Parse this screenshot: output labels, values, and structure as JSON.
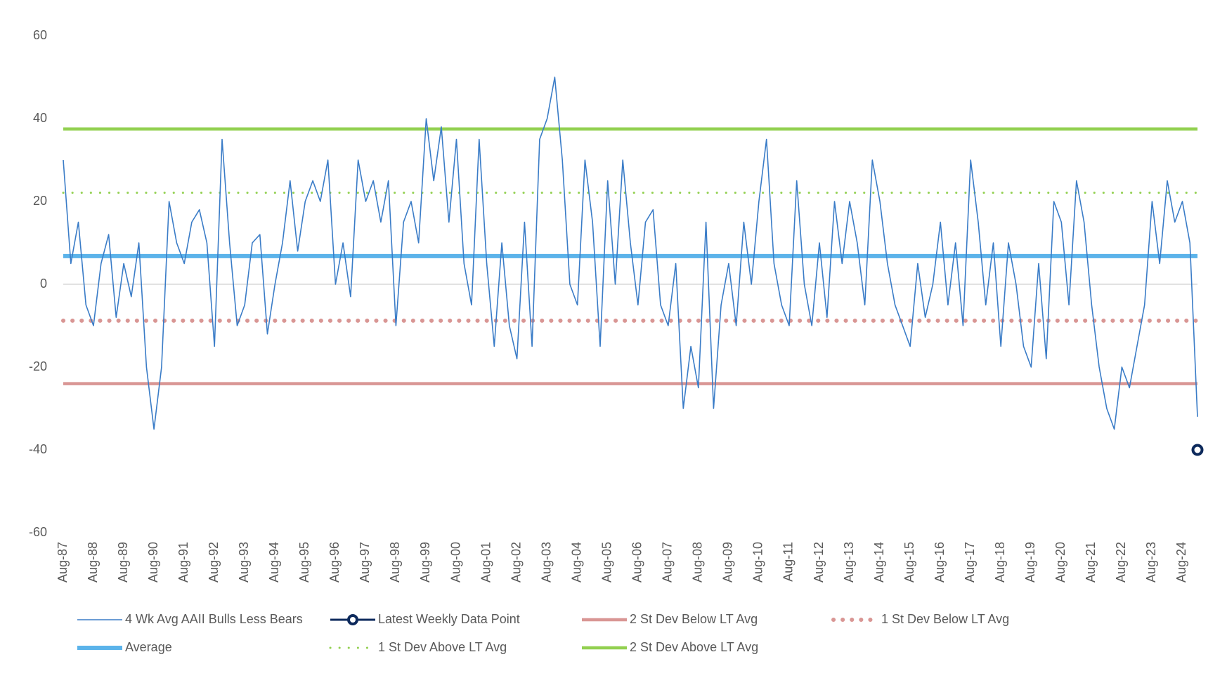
{
  "chart_data": {
    "type": "line",
    "x": [
      "Aug-87",
      "Nov-87",
      "Feb-88",
      "May-88",
      "Aug-88",
      "Nov-88",
      "Feb-89",
      "May-89",
      "Aug-89",
      "Nov-89",
      "Feb-90",
      "May-90",
      "Aug-90",
      "Nov-90",
      "Feb-91",
      "May-91",
      "Aug-91",
      "Nov-91",
      "Feb-92",
      "May-92",
      "Aug-92",
      "Nov-92",
      "Feb-93",
      "May-93",
      "Aug-93",
      "Nov-93",
      "Feb-94",
      "May-94",
      "Aug-94",
      "Nov-94",
      "Feb-95",
      "May-95",
      "Aug-95",
      "Nov-95",
      "Feb-96",
      "May-96",
      "Aug-96",
      "Nov-96",
      "Feb-97",
      "May-97",
      "Aug-97",
      "Nov-97",
      "Feb-98",
      "May-98",
      "Aug-98",
      "Nov-98",
      "Feb-99",
      "May-99",
      "Aug-99",
      "Nov-99",
      "Feb-00",
      "May-00",
      "Aug-00",
      "Nov-00",
      "Feb-01",
      "May-01",
      "Aug-01",
      "Nov-01",
      "Feb-02",
      "May-02",
      "Aug-02",
      "Nov-02",
      "Feb-03",
      "May-03",
      "Aug-03",
      "Nov-03",
      "Feb-04",
      "May-04",
      "Aug-04",
      "Nov-04",
      "Feb-05",
      "May-05",
      "Aug-05",
      "Nov-05",
      "Feb-06",
      "May-06",
      "Aug-06",
      "Nov-06",
      "Feb-07",
      "May-07",
      "Aug-07",
      "Nov-07",
      "Feb-08",
      "May-08",
      "Aug-08",
      "Nov-08",
      "Feb-09",
      "May-09",
      "Aug-09",
      "Nov-09",
      "Feb-10",
      "May-10",
      "Aug-10",
      "Nov-10",
      "Feb-11",
      "May-11",
      "Aug-11",
      "Nov-11",
      "Feb-12",
      "May-12",
      "Aug-12",
      "Nov-12",
      "Feb-13",
      "May-13",
      "Aug-13",
      "Nov-13",
      "Feb-14",
      "May-14",
      "Aug-14",
      "Nov-14",
      "Feb-15",
      "May-15",
      "Aug-15",
      "Nov-15",
      "Feb-16",
      "May-16",
      "Aug-16",
      "Nov-16",
      "Feb-17",
      "May-17",
      "Aug-17",
      "Nov-17",
      "Feb-18",
      "May-18",
      "Aug-18",
      "Nov-18",
      "Feb-19",
      "May-19",
      "Aug-19",
      "Nov-19",
      "Feb-20",
      "May-20",
      "Aug-20",
      "Nov-20",
      "Feb-21",
      "May-21",
      "Aug-21",
      "Nov-21",
      "Feb-22",
      "May-22",
      "Aug-22",
      "Nov-22",
      "Feb-23",
      "May-23",
      "Aug-23",
      "Nov-23",
      "Feb-24",
      "May-24",
      "Aug-24",
      "Nov-24",
      "Feb-25"
    ],
    "xticks": [
      "Aug-87",
      "Aug-88",
      "Aug-89",
      "Aug-90",
      "Aug-91",
      "Aug-92",
      "Aug-93",
      "Aug-94",
      "Aug-95",
      "Aug-96",
      "Aug-97",
      "Aug-98",
      "Aug-99",
      "Aug-00",
      "Aug-01",
      "Aug-02",
      "Aug-03",
      "Aug-04",
      "Aug-05",
      "Aug-06",
      "Aug-07",
      "Aug-08",
      "Aug-09",
      "Aug-10",
      "Aug-11",
      "Aug-12",
      "Aug-13",
      "Aug-14",
      "Aug-15",
      "Aug-16",
      "Aug-17",
      "Aug-18",
      "Aug-19",
      "Aug-20",
      "Aug-21",
      "Aug-22",
      "Aug-23",
      "Aug-24"
    ],
    "series": [
      {
        "name": "4 Wk Avg AAII Bulls Less Bears",
        "color": "#3a7cc7",
        "values": [
          30,
          5,
          15,
          -5,
          -10,
          5,
          12,
          -8,
          5,
          -3,
          10,
          -20,
          -35,
          -20,
          20,
          10,
          5,
          15,
          18,
          10,
          -15,
          35,
          10,
          -10,
          -5,
          10,
          12,
          -12,
          0,
          10,
          25,
          8,
          20,
          25,
          20,
          30,
          0,
          10,
          -3,
          30,
          20,
          25,
          15,
          25,
          -10,
          15,
          20,
          10,
          40,
          25,
          38,
          15,
          35,
          5,
          -5,
          35,
          5,
          -15,
          10,
          -10,
          -18,
          15,
          -15,
          35,
          40,
          50,
          30,
          0,
          -5,
          30,
          15,
          -15,
          25,
          0,
          30,
          10,
          -5,
          15,
          18,
          -5,
          -10,
          5,
          -30,
          -15,
          -25,
          15,
          -30,
          -5,
          5,
          -10,
          15,
          0,
          20,
          35,
          5,
          -5,
          -10,
          25,
          0,
          -10,
          10,
          -8,
          20,
          5,
          20,
          10,
          -5,
          30,
          20,
          5,
          -5,
          -10,
          -15,
          5,
          -8,
          0,
          15,
          -5,
          10,
          -10,
          30,
          15,
          -5,
          10,
          -15,
          10,
          0,
          -15,
          -20,
          5,
          -18,
          20,
          15,
          -5,
          25,
          15,
          -5,
          -20,
          -30,
          -35,
          -20,
          -25,
          -15,
          -5,
          20,
          5,
          25,
          15,
          20,
          10,
          -32
        ]
      }
    ],
    "latest_point": {
      "name": "Latest Weekly Data Point",
      "x": "Feb-25",
      "value": -40,
      "color": "#0d2a5c"
    },
    "reference_lines": [
      {
        "name": "2 St Dev Below LT Avg",
        "value": -24,
        "color": "#d99694",
        "style": "solid"
      },
      {
        "name": "1 St Dev Below LT Avg",
        "value": -8.8,
        "color": "#d99694",
        "style": "dotted"
      },
      {
        "name": "Average",
        "value": 6.8,
        "color": "#5bb3ea",
        "style": "solid"
      },
      {
        "name": "1 St Dev Above LT Avg",
        "value": 22.1,
        "color": "#92d050",
        "style": "dotted"
      },
      {
        "name": "2 St Dev Above LT Avg",
        "value": 37.5,
        "color": "#92d050",
        "style": "solid"
      }
    ],
    "ylim": [
      -60,
      60
    ],
    "yticks": [
      -60,
      -40,
      -20,
      0,
      20,
      40,
      60
    ]
  }
}
